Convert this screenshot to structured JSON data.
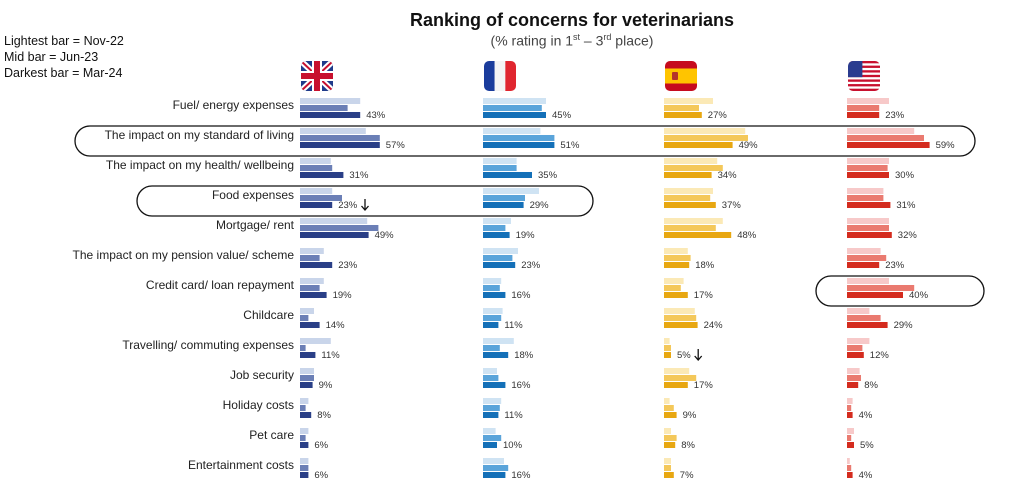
{
  "title": "Ranking of concerns for veterinarians",
  "subtitle": {
    "before": "(% rating in 1",
    "sup1": "st",
    "middle": " – 3",
    "sup2": "rd",
    "after": " place)"
  },
  "legend_notes": [
    "Lightest bar = Nov-22",
    "Mid bar = Jun-23",
    "Darkest bar = Mar-24"
  ],
  "chart_data": {
    "type": "bar",
    "orientation": "horizontal",
    "periods": [
      "Nov-22",
      "Jun-23",
      "Mar-24"
    ],
    "label_suffix": "%",
    "categories": [
      "Fuel/ energy expenses",
      "The impact on my standard of living",
      "The impact on my health/ wellbeing",
      "Food expenses",
      "Mortgage/ rent",
      "The impact on my pension value/ scheme",
      "Credit card/ loan repayment",
      "Childcare",
      "Travelling/  commuting expenses",
      "Job security",
      "Holiday costs",
      "Pet care",
      "Entertainment costs"
    ],
    "panels": [
      {
        "country": "UK",
        "flag": "uk-flag-icon",
        "colors": [
          "#c9d5ea",
          "#6b7fb6",
          "#2a3f87"
        ],
        "values": [
          [
            43,
            34,
            43
          ],
          [
            47,
            57,
            57
          ],
          [
            22,
            23,
            31
          ],
          [
            23,
            30,
            23
          ],
          [
            48,
            56,
            49
          ],
          [
            17,
            14,
            23
          ],
          [
            17,
            14,
            19
          ],
          [
            10,
            6,
            14
          ],
          [
            22,
            4,
            11
          ],
          [
            10,
            10,
            9
          ],
          [
            6,
            4,
            8
          ],
          [
            6,
            4,
            6
          ],
          [
            6,
            6,
            6
          ]
        ]
      },
      {
        "country": "France",
        "flag": "france-flag-icon",
        "colors": [
          "#cfe3f3",
          "#5aa4da",
          "#1470b8"
        ],
        "values": [
          [
            45,
            42,
            45
          ],
          [
            41,
            51,
            51
          ],
          [
            24,
            24,
            35
          ],
          [
            40,
            30,
            29
          ],
          [
            20,
            16,
            19
          ],
          [
            25,
            21,
            23
          ],
          [
            13,
            12,
            16
          ],
          [
            14,
            13,
            11
          ],
          [
            22,
            12,
            18
          ],
          [
            10,
            11,
            16
          ],
          [
            13,
            12,
            11
          ],
          [
            9,
            13,
            10
          ],
          [
            15,
            18,
            16
          ]
        ]
      },
      {
        "country": "Spain",
        "flag": "spain-flag-icon",
        "colors": [
          "#fbe9b6",
          "#f4c85a",
          "#e8a711"
        ],
        "values": [
          [
            35,
            25,
            27
          ],
          [
            58,
            60,
            49
          ],
          [
            38,
            42,
            34
          ],
          [
            35,
            33,
            37
          ],
          [
            42,
            37,
            48
          ],
          [
            17,
            19,
            18
          ],
          [
            14,
            12,
            17
          ],
          [
            22,
            23,
            24
          ],
          [
            4,
            5,
            5
          ],
          [
            18,
            23,
            17
          ],
          [
            4,
            7,
            9
          ],
          [
            5,
            9,
            8
          ],
          [
            5,
            5,
            7
          ]
        ]
      },
      {
        "country": "USA",
        "flag": "usa-flag-icon",
        "colors": [
          "#f7c9c9",
          "#ea7a70",
          "#d42b1e"
        ],
        "values": [
          [
            30,
            23,
            23
          ],
          [
            48,
            55,
            59
          ],
          [
            30,
            29,
            30
          ],
          [
            26,
            26,
            31
          ],
          [
            30,
            30,
            32
          ],
          [
            24,
            28,
            23
          ],
          [
            30,
            48,
            40
          ],
          [
            16,
            24,
            29
          ],
          [
            16,
            11,
            12
          ],
          [
            9,
            10,
            8
          ],
          [
            4,
            3,
            4
          ],
          [
            5,
            3,
            5
          ],
          [
            2,
            3,
            4
          ]
        ]
      }
    ],
    "highlights": [
      {
        "label": "The impact on my standard of living",
        "scope": "all-panels"
      },
      {
        "label": "Food expenses",
        "scope": "UK-France"
      },
      {
        "label": "Credit card/ loan repayment",
        "scope": "USA"
      }
    ],
    "arrows": [
      {
        "panel": "UK",
        "category": "Food expenses",
        "direction": "down"
      },
      {
        "panel": "Spain",
        "category": "Travelling/  commuting expenses",
        "direction": "down"
      }
    ]
  }
}
